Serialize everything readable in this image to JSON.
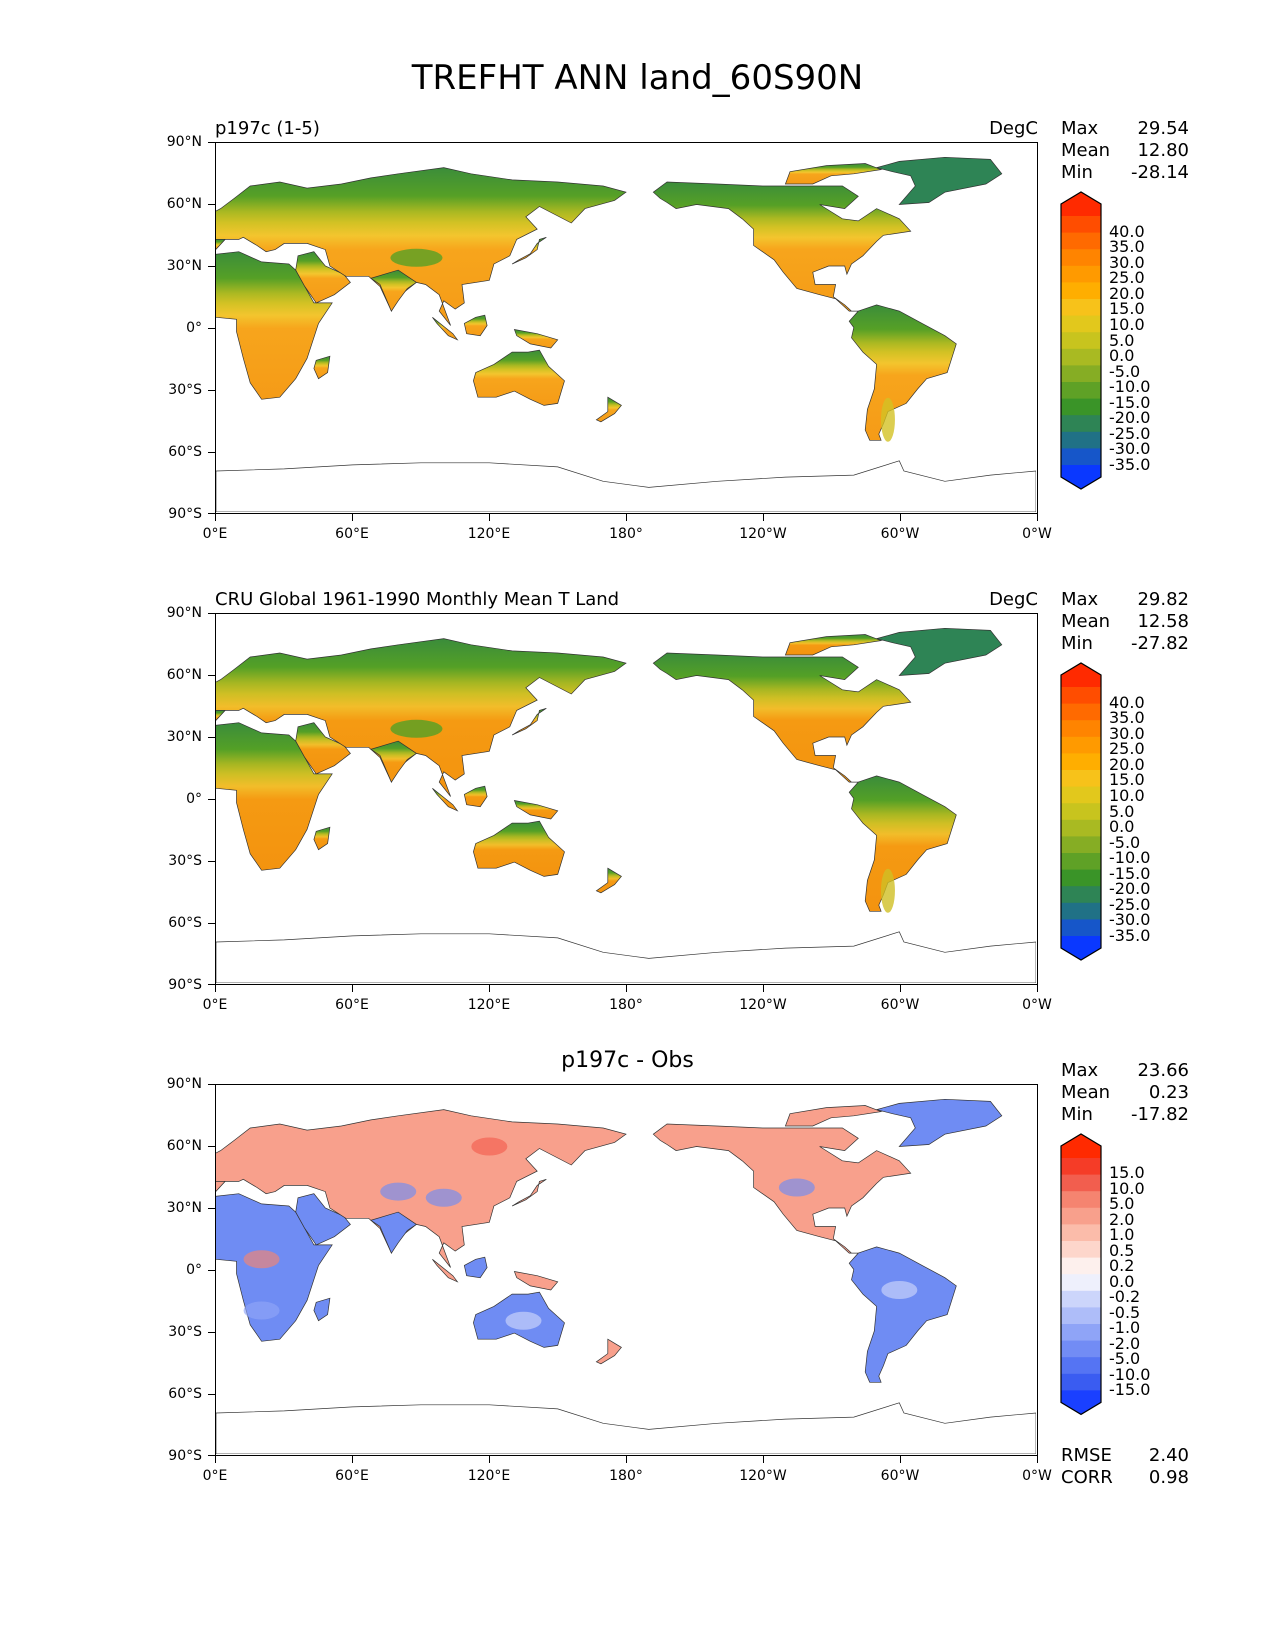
{
  "title": "TREFHT ANN land_60S90N",
  "y_ticks": [
    "90°N",
    "60°N",
    "30°N",
    "0°",
    "30°S",
    "60°S",
    "90°S"
  ],
  "x_ticks": [
    "0°E",
    "60°E",
    "120°E",
    "180°",
    "120°W",
    "60°W",
    "0°W"
  ],
  "panels": [
    {
      "id": "test",
      "title_left": "p197c (1-5)",
      "title_right": "DegC",
      "title_center": "",
      "stats": [
        {
          "label": "Max",
          "value": "29.54"
        },
        {
          "label": "Mean",
          "value": "12.80"
        },
        {
          "label": "Min",
          "value": "-28.14"
        }
      ],
      "extra_stats": [],
      "colorbar_levels": [
        "40.0",
        "35.0",
        "30.0",
        "25.0",
        "20.0",
        "15.0",
        "10.0",
        "5.0",
        "0.0",
        "-5.0",
        "-10.0",
        "-15.0",
        "-20.0",
        "-25.0",
        "-30.0",
        "-35.0"
      ],
      "colorbar_colors": [
        "#ff2a00",
        "#ff4d00",
        "#ff6a00",
        "#ff8400",
        "#ff9a00",
        "#ffae00",
        "#f7c21a",
        "#e2c81c",
        "#c8c41e",
        "#a9ba22",
        "#86ad24",
        "#5fa126",
        "#3a9428",
        "#2e8455",
        "#207186",
        "#1656c9",
        "#0a38ff"
      ],
      "land_palette": [
        "#f7a51c",
        "#f59b17",
        "#f3c52e",
        "#d3c224",
        "#aab822",
        "#7fae25",
        "#56a026",
        "#3b8d3a"
      ]
    },
    {
      "id": "ref",
      "title_left": "CRU Global 1961-1990 Monthly Mean T Land",
      "title_right": "DegC",
      "title_center": "",
      "stats": [
        {
          "label": "Max",
          "value": "29.82"
        },
        {
          "label": "Mean",
          "value": "12.58"
        },
        {
          "label": "Min",
          "value": "-27.82"
        }
      ],
      "extra_stats": [],
      "colorbar_levels": [
        "40.0",
        "35.0",
        "30.0",
        "25.0",
        "20.0",
        "15.0",
        "10.0",
        "5.0",
        "0.0",
        "-5.0",
        "-10.0",
        "-15.0",
        "-20.0",
        "-25.0",
        "-30.0",
        "-35.0"
      ],
      "colorbar_colors": [
        "#ff2a00",
        "#ff4d00",
        "#ff6a00",
        "#ff8400",
        "#ff9a00",
        "#ffae00",
        "#f7c21a",
        "#e2c81c",
        "#c8c41e",
        "#a9ba22",
        "#86ad24",
        "#5fa126",
        "#3a9428",
        "#2e8455",
        "#207186",
        "#1656c9",
        "#0a38ff"
      ],
      "land_palette": [
        "#f59a12",
        "#f3930f",
        "#f2bd2a",
        "#cfbf24",
        "#a6b622",
        "#7cab25",
        "#54a026",
        "#3a8c3b"
      ]
    },
    {
      "id": "diff",
      "title_left": "",
      "title_right": "",
      "title_center": "p197c - Obs",
      "stats": [
        {
          "label": "Max",
          "value": "23.66"
        },
        {
          "label": "Mean",
          "value": "0.23"
        },
        {
          "label": "Min",
          "value": "-17.82"
        }
      ],
      "extra_stats": [
        {
          "label": "RMSE",
          "value": "2.40"
        },
        {
          "label": "CORR",
          "value": "0.98"
        }
      ],
      "colorbar_levels": [
        "15.0",
        "10.0",
        "5.0",
        "2.0",
        "1.0",
        "0.5",
        "0.2",
        "0.0",
        "-0.2",
        "-0.5",
        "-1.0",
        "-2.0",
        "-5.0",
        "-10.0",
        "-15.0"
      ],
      "colorbar_colors": [
        "#ff2a00",
        "#f53c27",
        "#f25e4e",
        "#f58470",
        "#f8a08c",
        "#fbbcaa",
        "#fdd6cb",
        "#fdf0ed",
        "#eef0fc",
        "#ccd5fb",
        "#aebdf9",
        "#8fa4f7",
        "#728cf5",
        "#5574f3",
        "#3a5cf1",
        "#1a40ff"
      ],
      "land_palette": [
        "#f8a08c",
        "#6f8cf3",
        "#fbbcaa",
        "#8fa4f7",
        "#f58470",
        "#ccd5fb",
        "#f25e4e",
        "#5574f3"
      ]
    }
  ]
}
